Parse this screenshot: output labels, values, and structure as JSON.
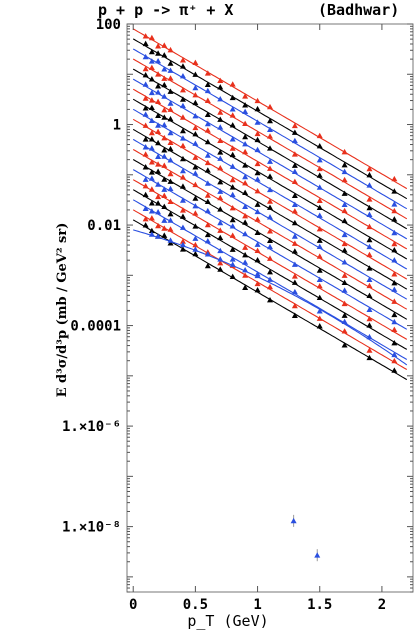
{
  "chart_data": {
    "type": "scatter",
    "title_left": "p + p -> π⁺ + X",
    "title_right": "(Badhwar)",
    "xlabel": "p_T (GeV)",
    "ylabel": "E d³σ/d³p (mb / GeV² sr)",
    "y_scale": "log",
    "xlim": [
      -0.05,
      2.25
    ],
    "ylim": [
      5e-10,
      100
    ],
    "x_ticks": [
      {
        "value": 0,
        "label": "0"
      },
      {
        "value": 0.5,
        "label": "0.5"
      },
      {
        "value": 1,
        "label": "1"
      },
      {
        "value": 1.5,
        "label": "1.5"
      },
      {
        "value": 2,
        "label": "2"
      }
    ],
    "y_ticks": [
      {
        "value": 100,
        "label": "100"
      },
      {
        "value": 1,
        "label": "1"
      },
      {
        "value": 0.01,
        "label": "0.01"
      },
      {
        "value": 0.0001,
        "label": "0.0001"
      },
      {
        "value": 1e-06,
        "label": "1.×10⁻⁶"
      },
      {
        "value": 1e-08,
        "label": "1.×10⁻⁸"
      }
    ],
    "colors": {
      "red": "#e8301c",
      "black": "#000000",
      "blue": "#2a4fe0"
    },
    "curve": {
      "n_curves": 21,
      "amp_top": 80,
      "step_decades": 0.2,
      "b": 3.3,
      "k": 0.012,
      "x_range": [
        0,
        2.2
      ]
    },
    "point_x": [
      0.1,
      0.15,
      0.2,
      0.25,
      0.3,
      0.4,
      0.5,
      0.6,
      0.7,
      0.8,
      0.9,
      1.0,
      1.1,
      1.3,
      1.5,
      1.7,
      1.9,
      2.1
    ],
    "bottom_series_x": [
      0.15,
      0.2,
      0.3,
      0.4,
      0.5,
      0.6,
      0.7,
      0.8,
      0.9,
      1.0
    ],
    "outliers": [
      {
        "x": 1.29,
        "y": 1.3e-08,
        "color": "blue"
      },
      {
        "x": 1.48,
        "y": 2.7e-09,
        "color": "blue"
      }
    ]
  }
}
